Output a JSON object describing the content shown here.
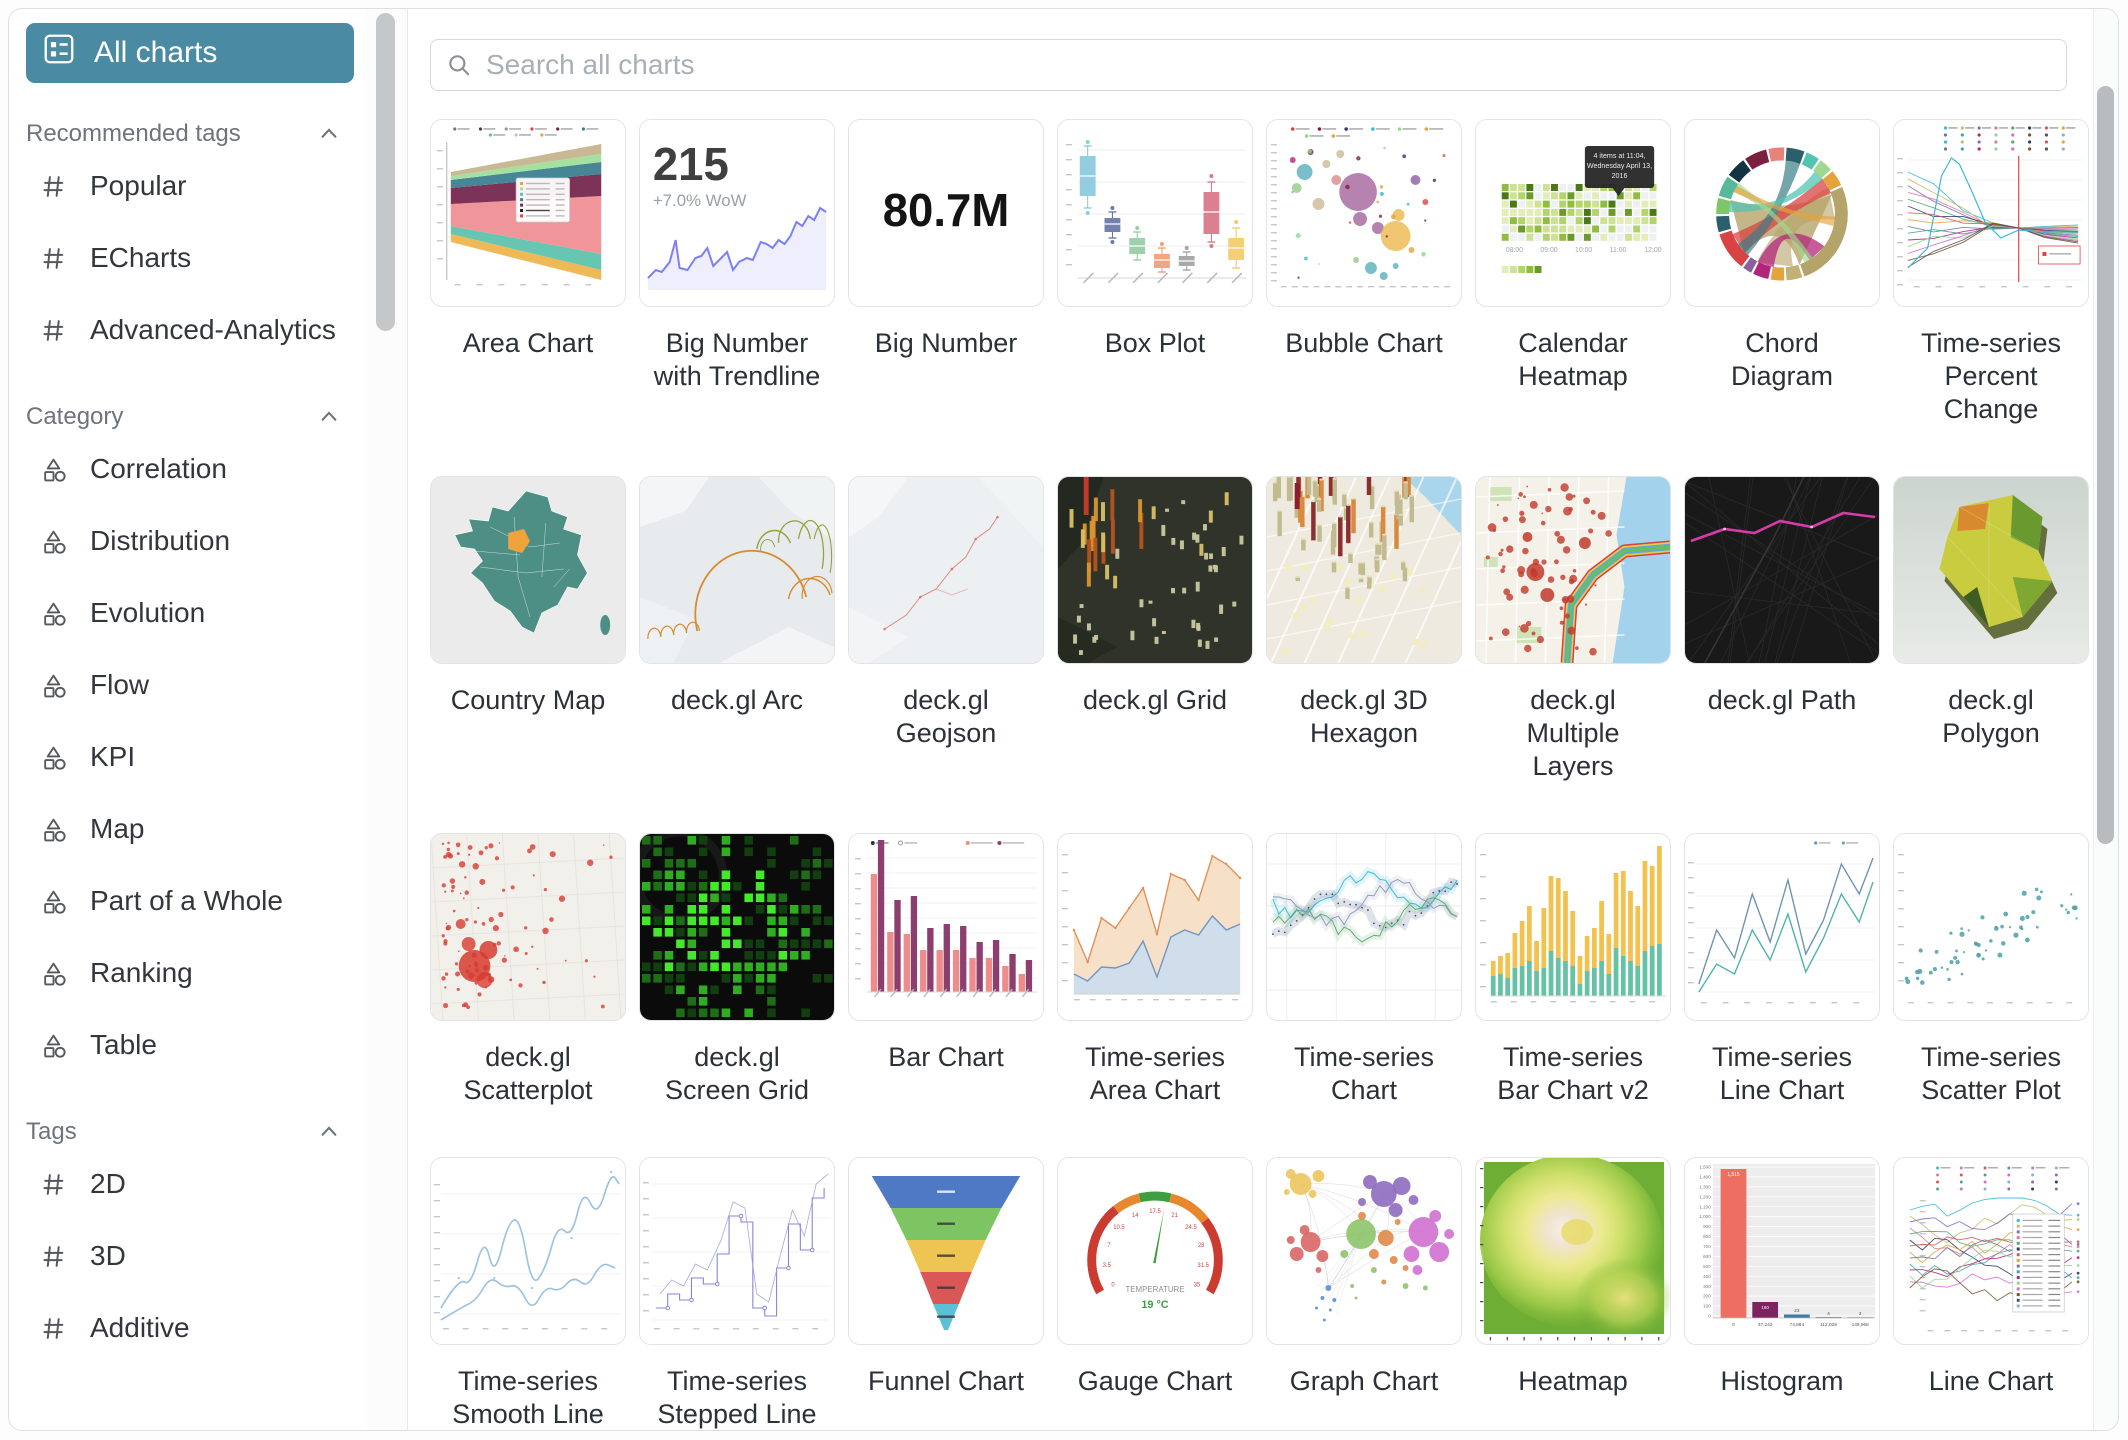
{
  "sidebar": {
    "all_charts_label": "All charts",
    "sections": [
      {
        "title": "Recommended tags",
        "icon": "hash",
        "items": [
          "Popular",
          "ECharts",
          "Advanced-Analytics"
        ]
      },
      {
        "title": "Category",
        "icon": "category",
        "items": [
          "Correlation",
          "Distribution",
          "Evolution",
          "Flow",
          "KPI",
          "Map",
          "Part of a Whole",
          "Ranking",
          "Table"
        ]
      },
      {
        "title": "Tags",
        "icon": "hash",
        "items": [
          "2D",
          "3D",
          "Additive"
        ]
      }
    ]
  },
  "search": {
    "placeholder": "Search all charts"
  },
  "charts": [
    {
      "id": "area-chart",
      "label": "Area Chart"
    },
    {
      "id": "big-number-trendline",
      "label": "Big Number\nwith Trendline"
    },
    {
      "id": "big-number",
      "label": "Big Number"
    },
    {
      "id": "box-plot",
      "label": "Box Plot"
    },
    {
      "id": "bubble-chart",
      "label": "Bubble Chart"
    },
    {
      "id": "calendar-heatmap",
      "label": "Calendar\nHeatmap"
    },
    {
      "id": "chord-diagram",
      "label": "Chord\nDiagram"
    },
    {
      "id": "time-series-percent-change",
      "label": "Time-series\nPercent\nChange"
    },
    {
      "id": "country-map",
      "label": "Country Map"
    },
    {
      "id": "deck-gl-arc",
      "label": "deck.gl Arc"
    },
    {
      "id": "deck-gl-geojson",
      "label": "deck.gl\nGeojson"
    },
    {
      "id": "deck-gl-grid",
      "label": "deck.gl Grid"
    },
    {
      "id": "deck-gl-3d-hexagon",
      "label": "deck.gl 3D\nHexagon"
    },
    {
      "id": "deck-gl-multiple-layers",
      "label": "deck.gl\nMultiple\nLayers"
    },
    {
      "id": "deck-gl-path",
      "label": "deck.gl Path"
    },
    {
      "id": "deck-gl-polygon",
      "label": "deck.gl\nPolygon"
    },
    {
      "id": "deck-gl-scatterplot",
      "label": "deck.gl\nScatterplot"
    },
    {
      "id": "deck-gl-screen-grid",
      "label": "deck.gl\nScreen Grid"
    },
    {
      "id": "bar-chart",
      "label": "Bar Chart"
    },
    {
      "id": "time-series-area-chart",
      "label": "Time-series\nArea Chart"
    },
    {
      "id": "time-series-chart",
      "label": "Time-series\nChart"
    },
    {
      "id": "time-series-bar-chart-v2",
      "label": "Time-series\nBar Chart v2"
    },
    {
      "id": "time-series-line-chart",
      "label": "Time-series\nLine Chart"
    },
    {
      "id": "time-series-scatter-plot",
      "label": "Time-series\nScatter Plot"
    },
    {
      "id": "time-series-smooth-line",
      "label": "Time-series\nSmooth Line"
    },
    {
      "id": "time-series-stepped-line",
      "label": "Time-series\nStepped Line"
    },
    {
      "id": "funnel-chart",
      "label": "Funnel Chart"
    },
    {
      "id": "gauge-chart",
      "label": "Gauge Chart"
    },
    {
      "id": "graph-chart",
      "label": "Graph Chart"
    },
    {
      "id": "heatmap",
      "label": "Heatmap"
    },
    {
      "id": "histogram",
      "label": "Histogram"
    },
    {
      "id": "line-chart",
      "label": "Line Chart"
    }
  ],
  "thumb_text": {
    "big_number_trendline": {
      "value": "215",
      "subtitle": "+7.0% WoW"
    },
    "big_number": {
      "value": "80.7M"
    },
    "calendar_heatmap": {
      "tooltip_lines": [
        "4 items at 11:04,",
        "Wednesday April 13,",
        "2016"
      ],
      "x_labels": [
        "08:00",
        "09:00",
        "10:00",
        "11:00",
        "12:00"
      ]
    },
    "gauge_chart": {
      "label": "TEMPERATURE",
      "value": "19 °C",
      "ticks": [
        "0",
        "3.5",
        "7",
        "10.5",
        "14",
        "17.5",
        "21",
        "24.5",
        "28",
        "31.5",
        "35"
      ]
    },
    "histogram": {
      "bar_values": [
        "1,515",
        "160",
        "23",
        "4",
        "2"
      ],
      "x_labels": [
        "0",
        "37,242",
        "74,884",
        "112,029",
        "149,968"
      ],
      "y_ticks": [
        "1,500",
        "1,400",
        "1,300",
        "1,200",
        "1,100",
        "1,000",
        "900",
        "800",
        "700",
        "600",
        "500",
        "400",
        "300",
        "200",
        "100",
        "0"
      ]
    }
  },
  "colors": {
    "accent": "#4a8ba3",
    "card_border": "#e2e3e5",
    "label_text": "#2c3137",
    "section_text": "#6e747c"
  }
}
